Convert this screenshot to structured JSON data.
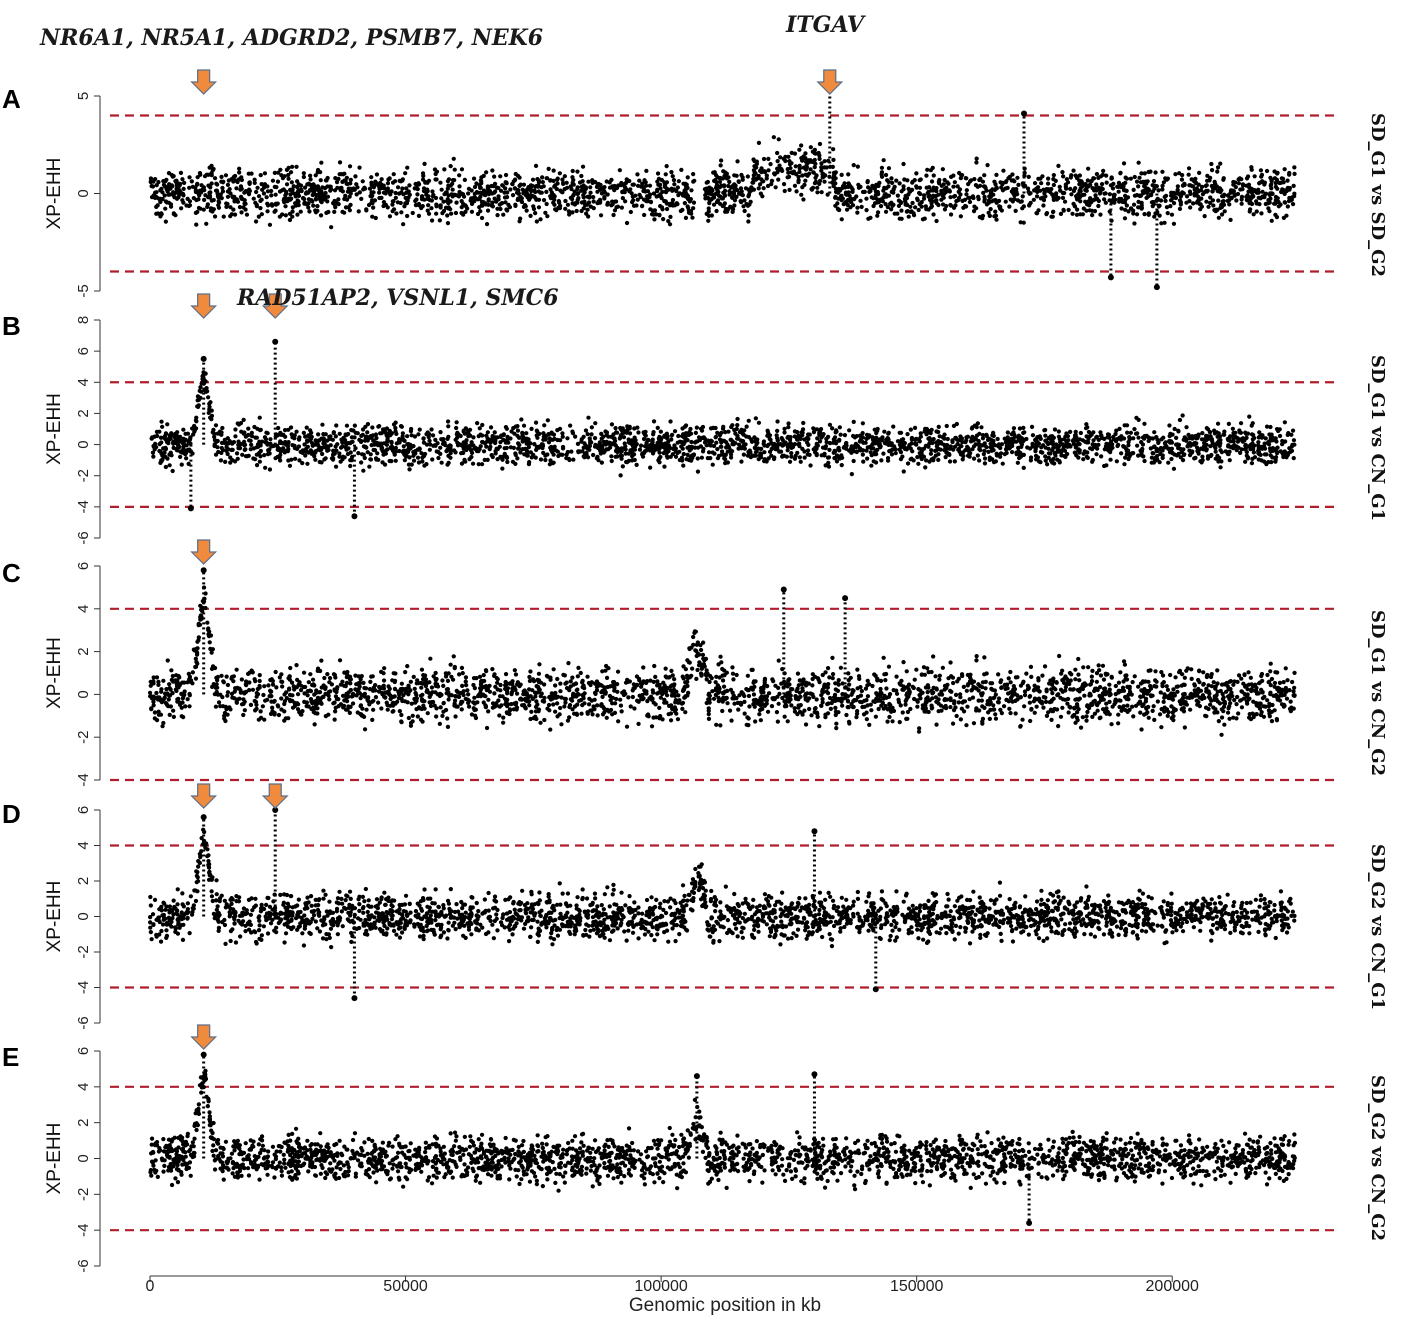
{
  "chart_data": {
    "type": "scatter",
    "x_axis": {
      "label": "Genomic position in kb",
      "range": [
        0,
        225000
      ],
      "ticks": [
        0,
        50000,
        100000,
        150000,
        200000
      ]
    },
    "y_axis_label": "XP-EHH",
    "threshold_color": "#b01e2e",
    "point_color": "#000000",
    "arrow_color": "#f08a3c",
    "panels": [
      {
        "label": "A",
        "comparison": "SD_G1 vs SD_G2",
        "ylim": [
          -5,
          5
        ],
        "yticks": [
          -5,
          0,
          5
        ],
        "thresholds": [
          4,
          -4
        ],
        "gene_labels": [
          {
            "text": "NR6A1,  NR5A1,  ADGRD2,  PSMB7,  NEK6"
          },
          {
            "text": "ITGAV"
          }
        ],
        "arrows": [
          10500,
          133000
        ],
        "peaks": [
          {
            "x": 133000,
            "y": 5.6
          },
          {
            "x": 171000,
            "y": 4.1
          },
          {
            "x": 197000,
            "y": -4.8
          },
          {
            "x": 188000,
            "y": -4.3
          }
        ]
      },
      {
        "label": "B",
        "comparison": "SD_G1 vs CN_G1",
        "ylim": [
          -6,
          8
        ],
        "yticks": [
          -6,
          -4,
          -2,
          0,
          2,
          4,
          6,
          8
        ],
        "thresholds": [
          4,
          -4
        ],
        "gene_labels": [
          {
            "text": "RAD51AP2,  VSNL1,  SMC6"
          }
        ],
        "arrows": [
          10500,
          24500
        ],
        "peaks": [
          {
            "x": 10500,
            "y": 5.5
          },
          {
            "x": 24500,
            "y": 6.6
          },
          {
            "x": 40000,
            "y": -4.6
          },
          {
            "x": 8000,
            "y": -4.1
          }
        ]
      },
      {
        "label": "C",
        "comparison": "SD_G1 vs CN_G2",
        "ylim": [
          -4,
          6
        ],
        "yticks": [
          -4,
          -2,
          0,
          2,
          4,
          6
        ],
        "thresholds": [
          4,
          -4
        ],
        "gene_labels": [],
        "arrows": [
          10500
        ],
        "peaks": [
          {
            "x": 10500,
            "y": 5.8
          },
          {
            "x": 124000,
            "y": 4.9
          },
          {
            "x": 136000,
            "y": 4.5
          }
        ]
      },
      {
        "label": "D",
        "comparison": "SD_G2 vs CN_G1",
        "ylim": [
          -6,
          6
        ],
        "yticks": [
          -6,
          -4,
          -2,
          0,
          2,
          4,
          6
        ],
        "thresholds": [
          4,
          -4
        ],
        "gene_labels": [],
        "arrows": [
          10500,
          24500
        ],
        "peaks": [
          {
            "x": 10500,
            "y": 5.6
          },
          {
            "x": 24500,
            "y": 6.0
          },
          {
            "x": 40000,
            "y": -4.6
          },
          {
            "x": 130000,
            "y": 4.8
          },
          {
            "x": 142000,
            "y": -4.1
          }
        ]
      },
      {
        "label": "E",
        "comparison": "SD_G2 vs CN_G2",
        "ylim": [
          -6,
          6
        ],
        "yticks": [
          -6,
          -4,
          -2,
          0,
          2,
          4,
          6
        ],
        "thresholds": [
          4,
          -4
        ],
        "gene_labels": [],
        "arrows": [
          10500
        ],
        "peaks": [
          {
            "x": 10500,
            "y": 5.8
          },
          {
            "x": 107000,
            "y": 4.6
          },
          {
            "x": 130000,
            "y": 4.7
          },
          {
            "x": 172000,
            "y": -3.6
          }
        ]
      }
    ]
  }
}
